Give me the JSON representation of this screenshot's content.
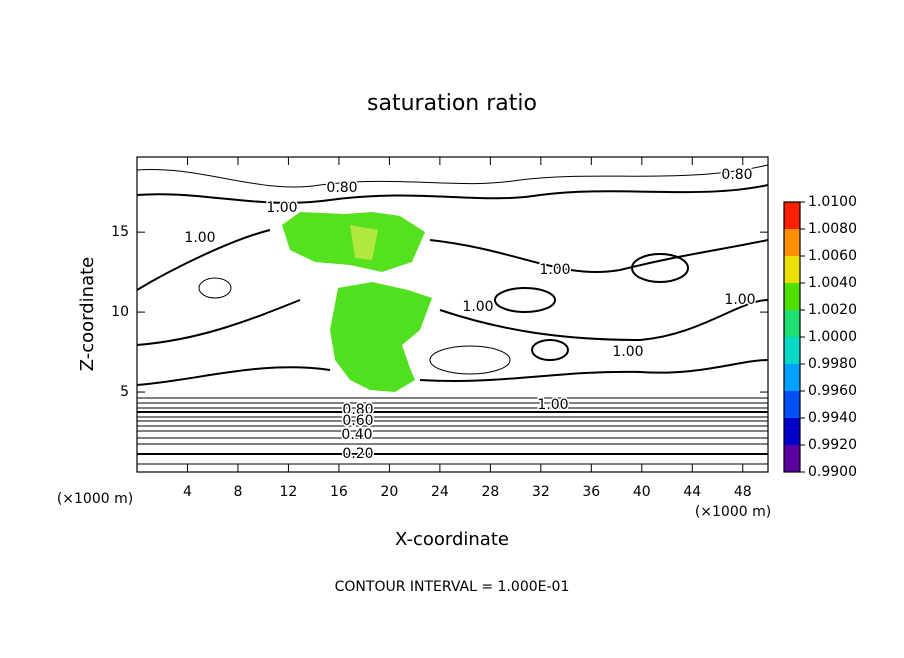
{
  "chart_data": {
    "type": "contour",
    "title": "saturation ratio",
    "x_label": "X-coordinate",
    "y_label": "Z-coordinate",
    "x_unit_label": "(×1000 m)",
    "y_unit_label": "(×1000 m)",
    "footer": "CONTOUR INTERVAL = 1.000E-01",
    "xlim": [
      0,
      50
    ],
    "xticks": [
      4,
      8,
      12,
      16,
      20,
      24,
      28,
      32,
      36,
      40,
      44,
      48
    ],
    "ylim": [
      0,
      19.7
    ],
    "yticks": [
      5,
      10,
      15
    ],
    "contour_labels": [
      "0.80",
      "0.80",
      "1.00",
      "1.00",
      "1.00",
      "1.00",
      "1.00",
      "1.00",
      "1.00",
      "0.80",
      "0.60",
      "0.40",
      "0.20"
    ],
    "colorbar_lim": [
      0.99,
      1.01
    ],
    "colorbar_ticks": [
      {
        "value": 1.01,
        "label": "1.0100"
      },
      {
        "value": 1.008,
        "label": "1.0080"
      },
      {
        "value": 1.006,
        "label": "1.0060"
      },
      {
        "value": 1.004,
        "label": "1.0040"
      },
      {
        "value": 1.002,
        "label": "1.0020"
      },
      {
        "value": 1.0,
        "label": "1.0000"
      },
      {
        "value": 0.998,
        "label": "0.9980"
      },
      {
        "value": 0.996,
        "label": "0.9960"
      },
      {
        "value": 0.994,
        "label": "0.9940"
      },
      {
        "value": 0.992,
        "label": "0.9920"
      },
      {
        "value": 0.99,
        "label": "0.9900"
      }
    ],
    "colorbar_colors": [
      "#5a00a0",
      "#0000c8",
      "#0050ff",
      "#00a0ff",
      "#00d8c8",
      "#20e070",
      "#50e000",
      "#e8e000",
      "#ff9000",
      "#ff2000"
    ]
  }
}
